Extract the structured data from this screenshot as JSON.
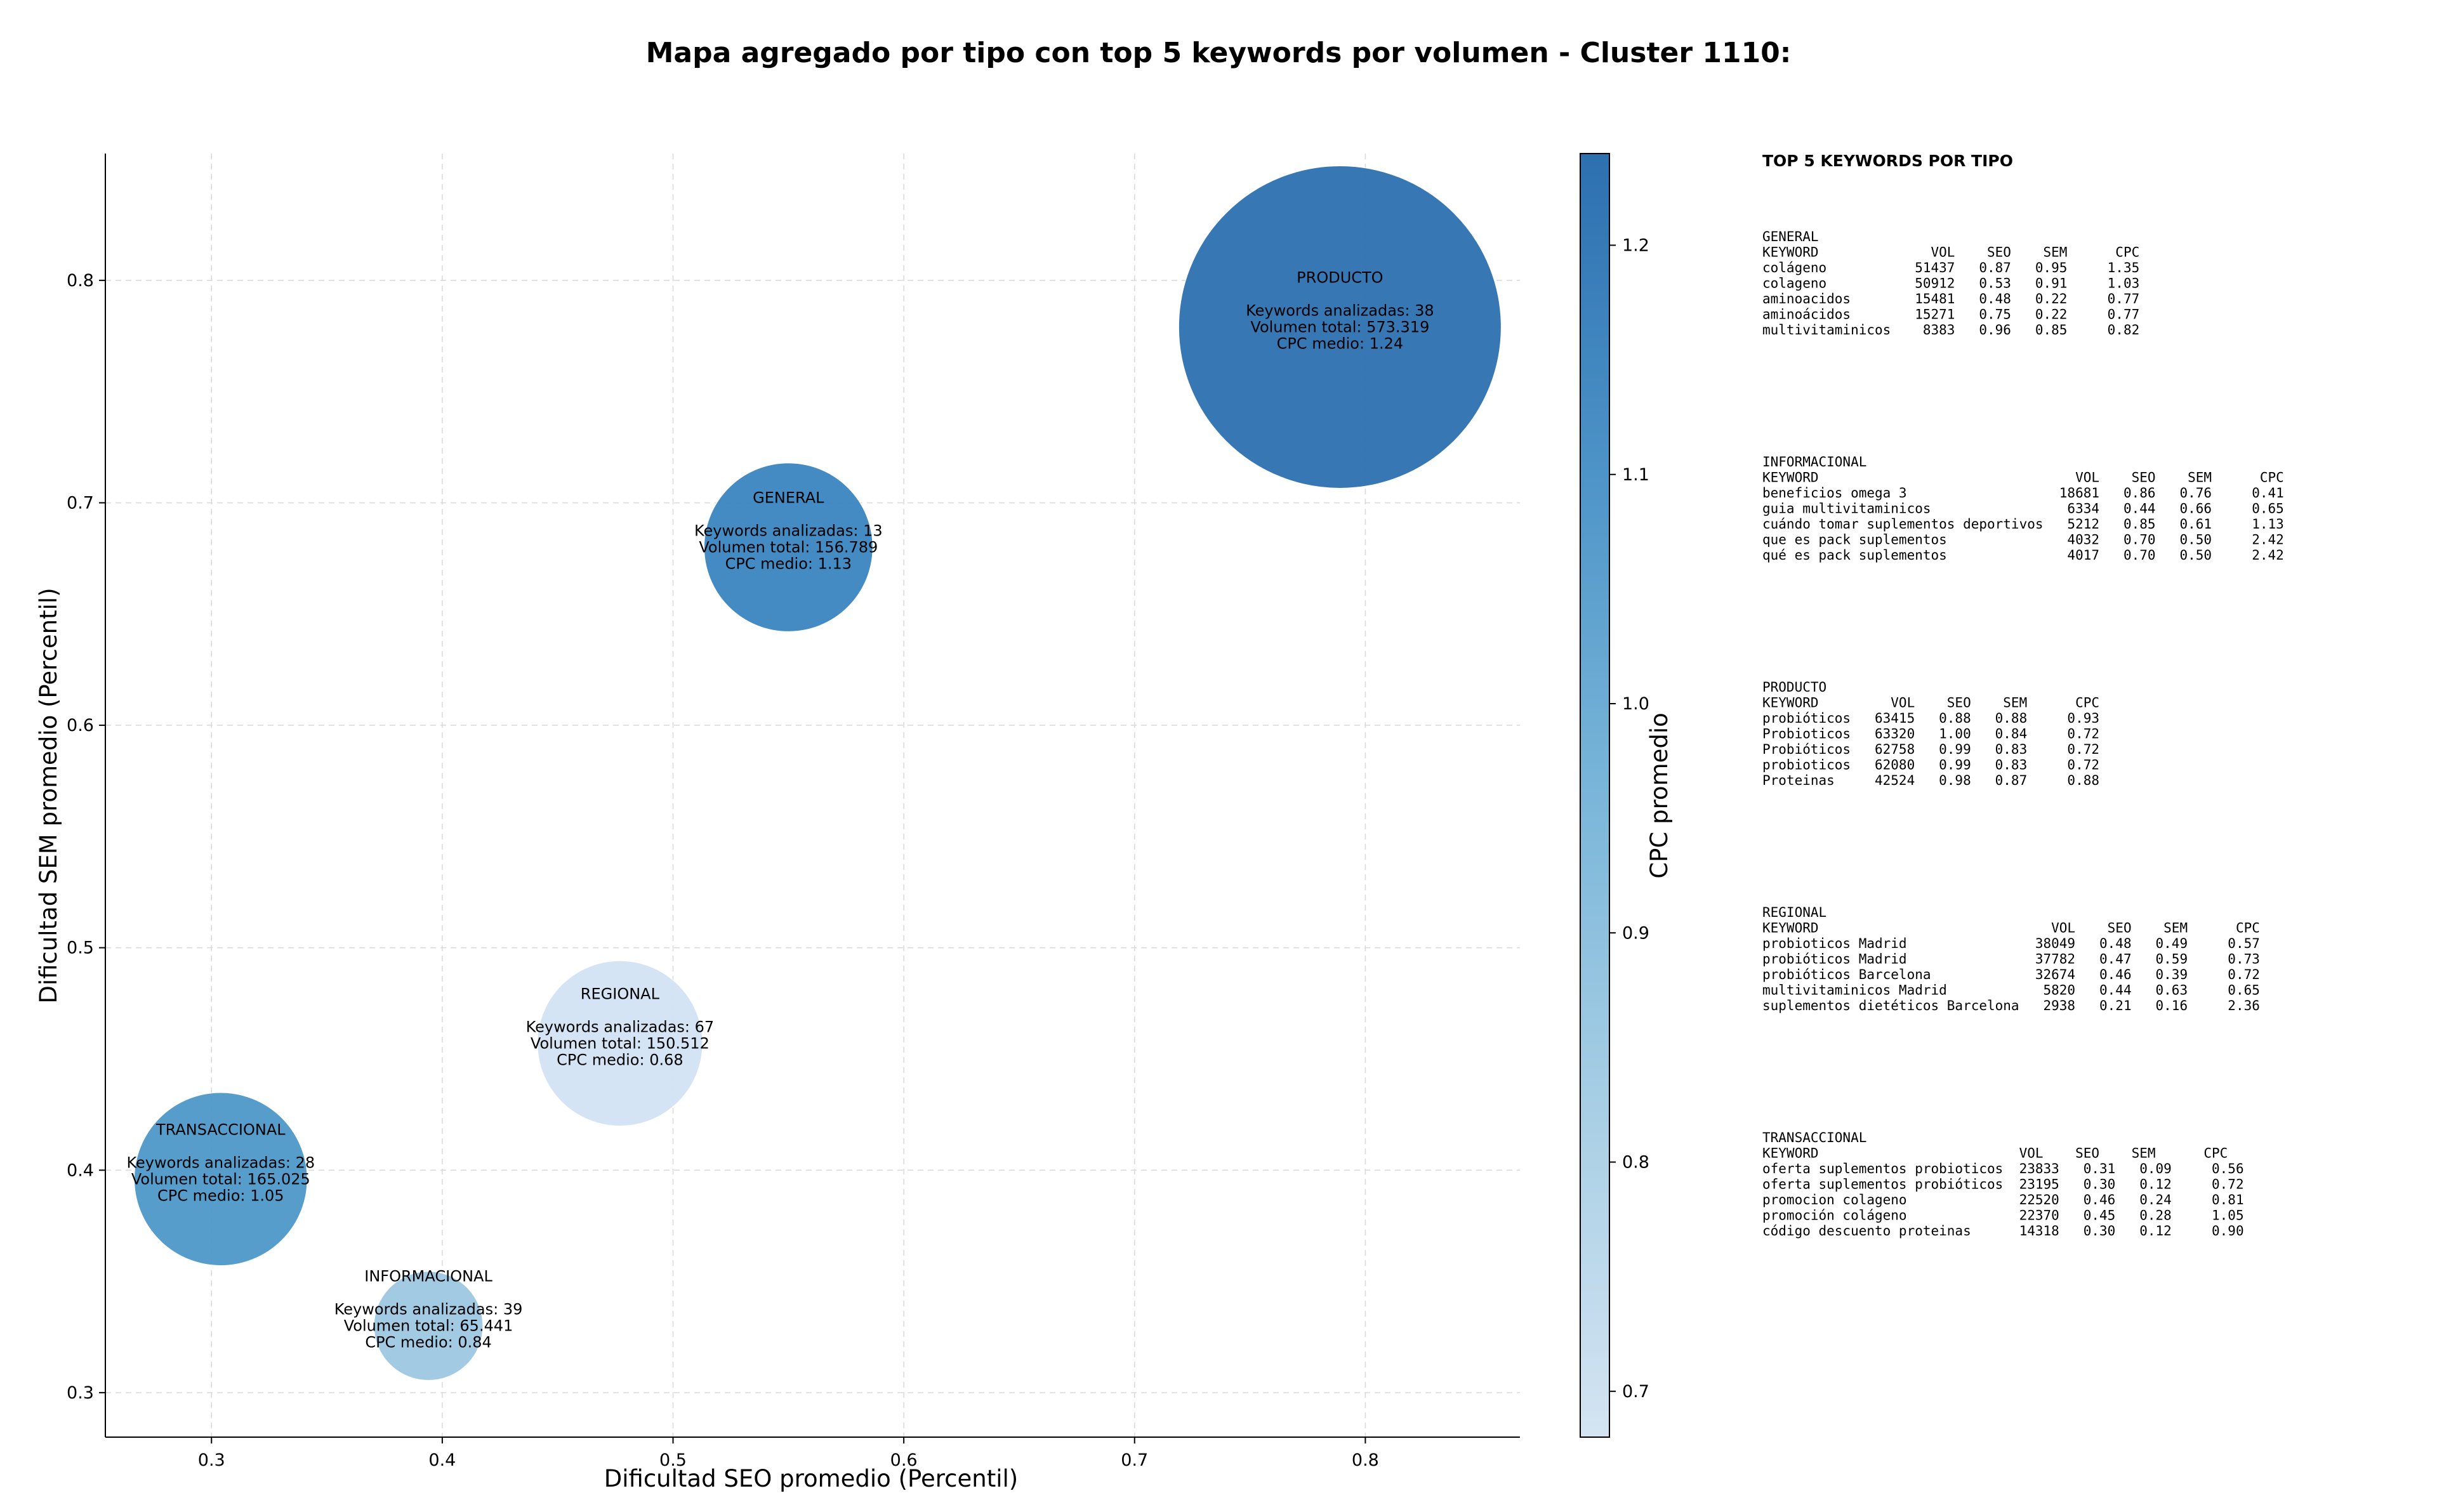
{
  "chart_data": {
    "type": "scatter",
    "title": "Mapa agregado por tipo con top 5 keywords por volumen - Cluster 1110:",
    "xlabel": "Dificultad SEO promedio (Percentil)",
    "ylabel": "Dificultad SEM promedio (Percentil)",
    "xlim": [
      0.254,
      0.867
    ],
    "ylim": [
      0.28,
      0.857
    ],
    "xticks": [
      0.3,
      0.4,
      0.5,
      0.6,
      0.7,
      0.8
    ],
    "yticks": [
      0.3,
      0.4,
      0.5,
      0.6,
      0.7,
      0.8
    ],
    "grid": true,
    "bubble_size": "volumen total",
    "color_by": "cpc medio",
    "colorbar": {
      "label": "CPC promedio",
      "range": [
        0.68,
        1.24
      ],
      "ticks": [
        0.7,
        0.8,
        0.9,
        1.0,
        1.1,
        1.2
      ],
      "colormap": [
        "#d4e4f2",
        "#a9cfe5",
        "#7ab6d9",
        "#4d94c8",
        "#2c70b0"
      ]
    },
    "bubbles": [
      {
        "name": "PRODUCTO",
        "x": 0.789,
        "y": 0.779,
        "keywords_label": "Keywords analizadas: 38",
        "volume_label": "Volumen total: 573.319",
        "cpc_label": "CPC medio: 1.24",
        "volume": 573319,
        "cpc": 1.24,
        "color": "#2c70b0"
      },
      {
        "name": "GENERAL",
        "x": 0.55,
        "y": 0.68,
        "keywords_label": "Keywords analizadas: 13",
        "volume_label": "Volumen total: 156.789",
        "cpc_label": "CPC medio: 1.13",
        "volume": 156789,
        "cpc": 1.13,
        "color": "#3b85c0"
      },
      {
        "name": "REGIONAL",
        "x": 0.477,
        "y": 0.457,
        "keywords_label": "Keywords analizadas: 67",
        "volume_label": "Volumen total: 150.512",
        "cpc_label": "CPC medio: 0.68",
        "volume": 150512,
        "cpc": 0.68,
        "color": "#d2e3f3"
      },
      {
        "name": "TRANSACCIONAL",
        "x": 0.304,
        "y": 0.396,
        "keywords_label": "Keywords analizadas: 28",
        "volume_label": "Volumen total: 165.025",
        "cpc_label": "CPC medio: 1.05",
        "volume": 165025,
        "cpc": 1.05,
        "color": "#4d98c9"
      },
      {
        "name": "INFORMACIONAL",
        "x": 0.394,
        "y": 0.33,
        "keywords_label": "Keywords analizadas: 39",
        "volume_label": "Volumen total: 65.441",
        "cpc_label": "CPC medio: 0.84",
        "volume": 65441,
        "cpc": 0.84,
        "color": "#9ec7e2"
      }
    ]
  },
  "panel": {
    "title": "TOP 5 KEYWORDS POR TIPO",
    "sections": [
      {
        "name": "GENERAL",
        "header": "KEYWORD              VOL    SEO    SEM      CPC",
        "rows": [
          "colágeno           51437   0.87   0.95     1.35",
          "colageno           50912   0.53   0.91     1.03",
          "aminoacidos        15481   0.48   0.22     0.77",
          "aminoácidos        15271   0.75   0.22     0.77",
          "multivitaminicos    8383   0.96   0.85     0.82"
        ]
      },
      {
        "name": "INFORMACIONAL",
        "header": "KEYWORD                                VOL    SEO    SEM      CPC",
        "rows": [
          "beneficios omega 3                   18681   0.86   0.76     0.41",
          "guia multivitaminicos                 6334   0.44   0.66     0.65",
          "cuándo tomar suplementos deportivos   5212   0.85   0.61     1.13",
          "que es pack suplementos               4032   0.70   0.50     2.42",
          "qué es pack suplementos               4017   0.70   0.50     2.42"
        ]
      },
      {
        "name": "PRODUCTO",
        "header": "KEYWORD         VOL    SEO    SEM      CPC",
        "rows": [
          "probióticos   63415   0.88   0.88     0.93",
          "Probioticos   63320   1.00   0.84     0.72",
          "Probióticos   62758   0.99   0.83     0.72",
          "probioticos   62080   0.99   0.83     0.72",
          "Proteinas     42524   0.98   0.87     0.88"
        ]
      },
      {
        "name": "REGIONAL",
        "header": "KEYWORD                             VOL    SEO    SEM      CPC",
        "rows": [
          "probioticos Madrid                38049   0.48   0.49     0.57",
          "probióticos Madrid                37782   0.47   0.59     0.73",
          "probióticos Barcelona             32674   0.46   0.39     0.72",
          "multivitaminicos Madrid            5820   0.44   0.63     0.65",
          "suplementos dietéticos Barcelona   2938   0.21   0.16     2.36"
        ]
      },
      {
        "name": "TRANSACCIONAL",
        "header": "KEYWORD                         VOL    SEO    SEM      CPC",
        "rows": [
          "oferta suplementos probioticos  23833   0.31   0.09     0.56",
          "oferta suplementos probióticos  23195   0.30   0.12     0.72",
          "promocion colageno              22520   0.46   0.24     0.81",
          "promoción colágeno              22370   0.45   0.28     1.05",
          "código descuento proteinas      14318   0.30   0.12     0.90"
        ]
      }
    ]
  }
}
